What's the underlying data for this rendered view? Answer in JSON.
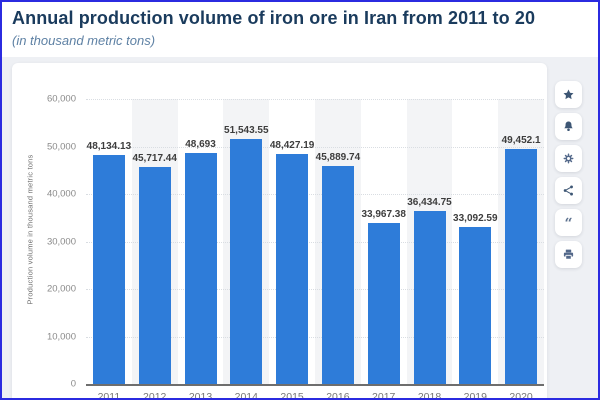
{
  "header": {
    "title": "Annual production volume of iron ore in Iran from 2011 to 20",
    "subtitle": "(in thousand metric tons)"
  },
  "chart_data": {
    "type": "bar",
    "title": "Annual production volume of iron ore in Iran from 2011 to 20",
    "subtitle": "(in thousand metric tons)",
    "categories": [
      "2011",
      "2012",
      "2013",
      "2014",
      "2015",
      "2016",
      "2017",
      "2018",
      "2019",
      "2020"
    ],
    "values": [
      48134.13,
      45717.44,
      48693,
      51543.55,
      48427.19,
      45889.74,
      33967.38,
      36434.75,
      33092.59,
      49452.1
    ],
    "labels": [
      "48,134.13",
      "45,717.44",
      "48,693",
      "51,543.55",
      "48,427.19",
      "45,889.74",
      "33,967.38",
      "36,434.75",
      "33,092.59",
      "49,452.1"
    ],
    "ylabel": "Production volume in thousand metric tons",
    "xlabel": "",
    "yticks": [
      "60,000",
      "50,000",
      "40,000",
      "30,000",
      "20,000",
      "10,000",
      "0"
    ],
    "ylim": [
      0,
      60000
    ],
    "grid": true,
    "legend": false,
    "bar_color": "#2e7cd9",
    "band_color": "#f3f4f6"
  },
  "toolbar": {
    "icons": [
      "favorite",
      "notification",
      "settings",
      "share",
      "cite",
      "print"
    ]
  },
  "colors": {
    "border_accent": "#2b2be0",
    "title": "#1a3b5d",
    "subtitle": "#5e81a4",
    "page_background": "#eef0f4",
    "card_background": "#ffffff",
    "icon": "#3d5674"
  }
}
